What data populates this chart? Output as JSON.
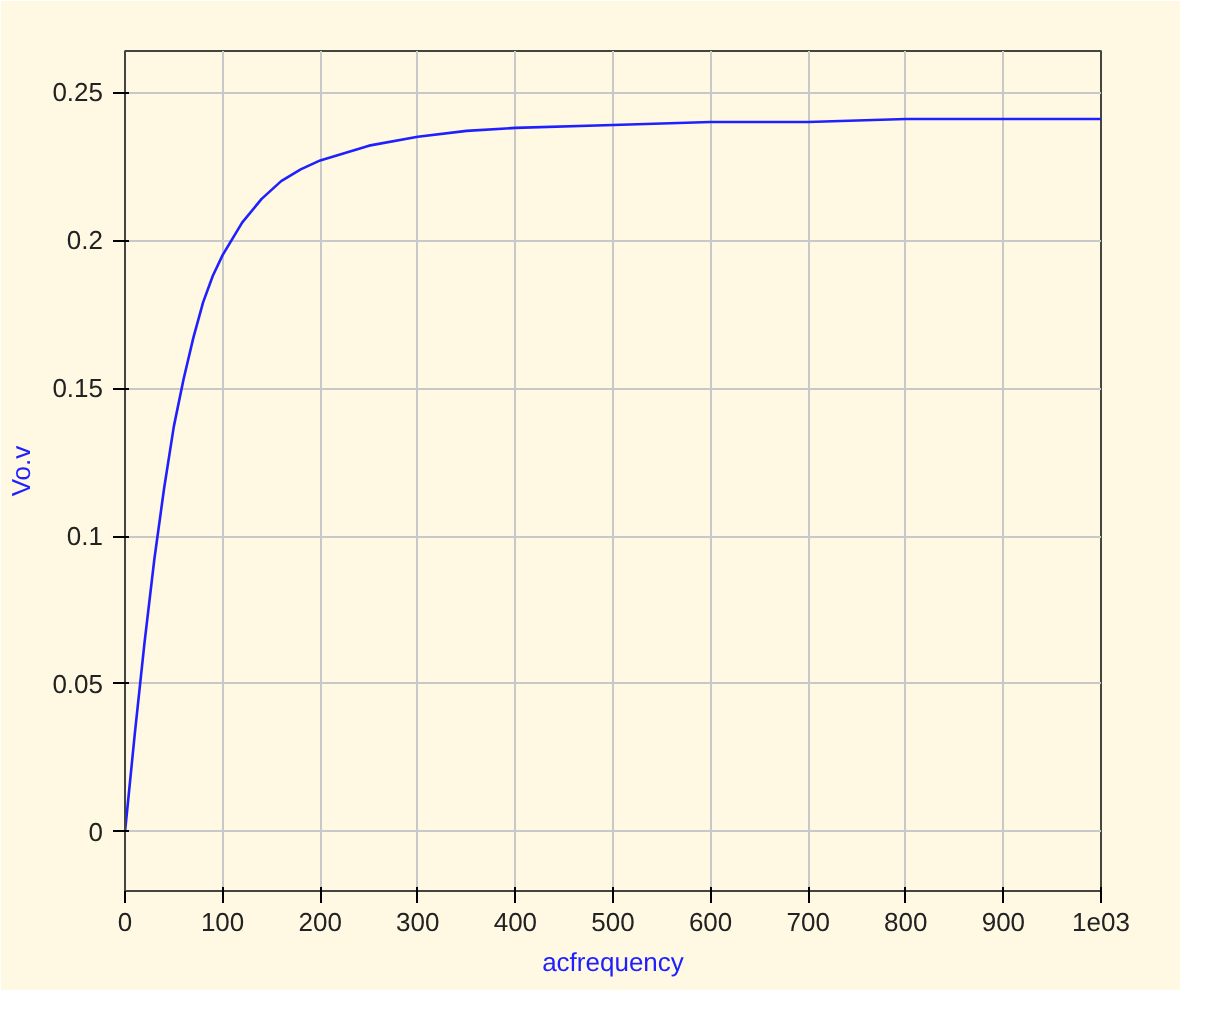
{
  "chart_data": {
    "type": "line",
    "xlabel": "acfrequency",
    "ylabel": "Vo.v",
    "x": [
      0,
      10,
      20,
      30,
      40,
      50,
      60,
      70,
      80,
      90,
      100,
      120,
      140,
      160,
      180,
      200,
      250,
      300,
      350,
      400,
      500,
      600,
      700,
      800,
      900,
      1000
    ],
    "series": [
      {
        "color": "#2020ff",
        "values": [
          0,
          0.033,
          0.064,
          0.092,
          0.116,
          0.137,
          0.153,
          0.167,
          0.179,
          0.188,
          0.195,
          0.206,
          0.214,
          0.22,
          0.224,
          0.227,
          0.232,
          0.235,
          0.237,
          0.238,
          0.239,
          0.24,
          0.24,
          0.241,
          0.241,
          0.241
        ]
      }
    ],
    "xlim": [
      0,
      1000
    ],
    "ylim": [
      -0.02,
      0.264
    ],
    "xticks": [
      0,
      100,
      200,
      300,
      400,
      500,
      600,
      700,
      800,
      900,
      {
        "value": 1000,
        "label": "1e03"
      }
    ],
    "yticks": [
      0,
      0.05,
      0.1,
      0.15,
      0.2,
      0.25
    ],
    "grid": true
  }
}
